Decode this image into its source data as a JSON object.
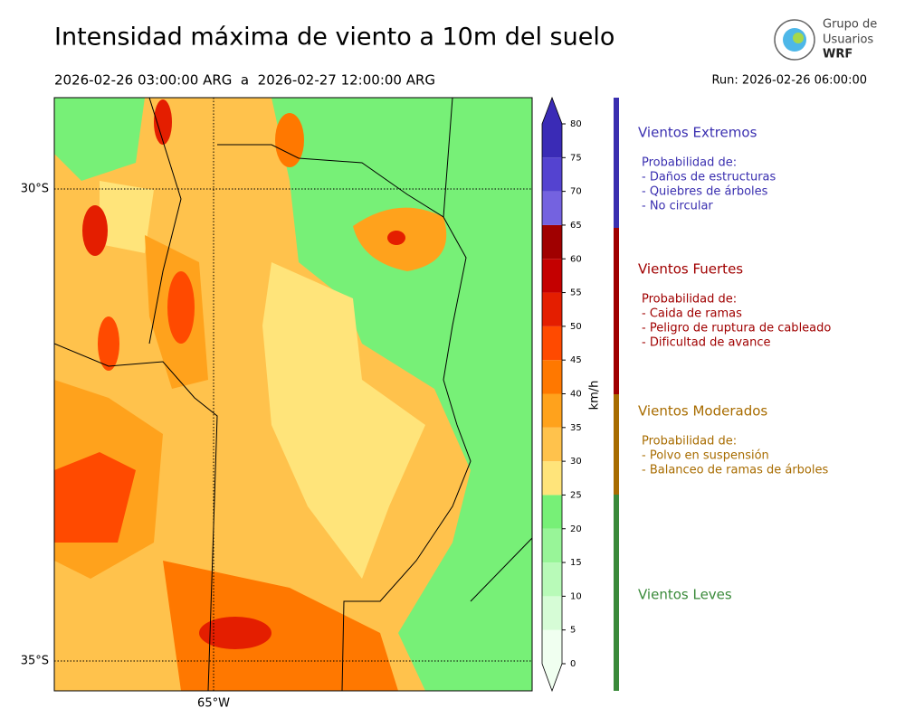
{
  "title": "Intensidad máxima de viento a 10m del suelo",
  "period": "2026-02-26 03:00:00 ARG  a  2026-02-27 12:00:00 ARG",
  "run": "Run: 2026-02-26 06:00:00",
  "logo": {
    "line1": "Grupo de",
    "line2": "Usuarios",
    "line3": "WRF"
  },
  "map": {
    "lat_labels": [
      "30°S",
      "35°S"
    ],
    "lon_labels": [
      "65°W"
    ]
  },
  "colorbar": {
    "label": "km/h",
    "ticks": [
      0,
      5,
      10,
      15,
      20,
      25,
      30,
      35,
      40,
      45,
      50,
      55,
      60,
      65,
      70,
      75,
      80
    ],
    "colors": [
      "#f0fff0",
      "#d6fcd6",
      "#b8fab8",
      "#98f598",
      "#77f077",
      "#ffe47a",
      "#ffc24c",
      "#ffa21c",
      "#ff7800",
      "#ff4a00",
      "#e41e00",
      "#c40000",
      "#a00000",
      "#7462e0",
      "#5443d0",
      "#3a2bb6"
    ]
  },
  "legend": [
    {
      "title": "Vientos Extremos",
      "color": "#3a2fb0",
      "lines": [
        "Probabilidad de:",
        "- Daños de estructuras",
        "- Quiebres de árboles",
        "- No circular"
      ]
    },
    {
      "title": "Vientos Fuertes",
      "color": "#a00000",
      "lines": [
        "Probabilidad de:",
        "- Caida de ramas",
        "- Peligro de ruptura de cableado",
        "- Dificultad de avance"
      ]
    },
    {
      "title": "Vientos Moderados",
      "color": "#a86c00",
      "lines": [
        "Probabilidad de:",
        "- Polvo en suspensión",
        "- Balanceo de ramas de árboles"
      ]
    },
    {
      "title": "Vientos Leves",
      "color": "#3a8a3a",
      "lines": []
    }
  ]
}
